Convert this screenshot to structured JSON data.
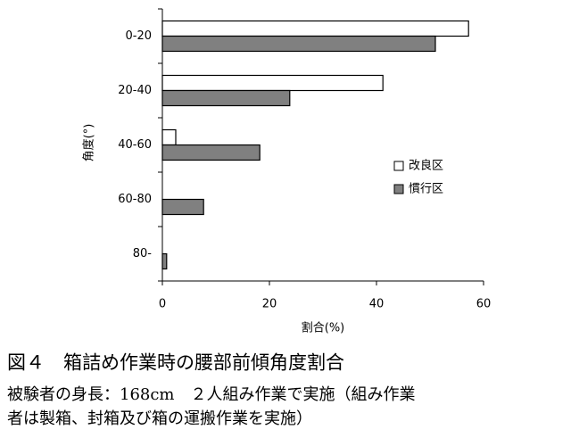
{
  "chart_data": {
    "type": "hbar",
    "title": "図４　箱詰め作業時の腰部前傾角度割合",
    "notes": [
      "被験者の身長：168cm　２人組み作業で実施（組み作業",
      "者は製箱、封箱及び箱の運搬作業を実施）"
    ],
    "x_label": "割合(%)",
    "y_label": "角度(°)",
    "categories": [
      "0-20",
      "20-40",
      "40-60",
      "60-80",
      "80-"
    ],
    "series": [
      {
        "name": "改良区",
        "color": "#ffffff",
        "values": [
          57.2,
          41.2,
          2.5,
          0,
          0
        ]
      },
      {
        "name": "慣行区",
        "color": "#808080",
        "values": [
          51,
          23.8,
          18.2,
          7.7,
          0.8
        ]
      }
    ],
    "xlim": [
      0,
      60
    ],
    "xticks": [
      0,
      20,
      40,
      60
    ],
    "grid": false
  }
}
